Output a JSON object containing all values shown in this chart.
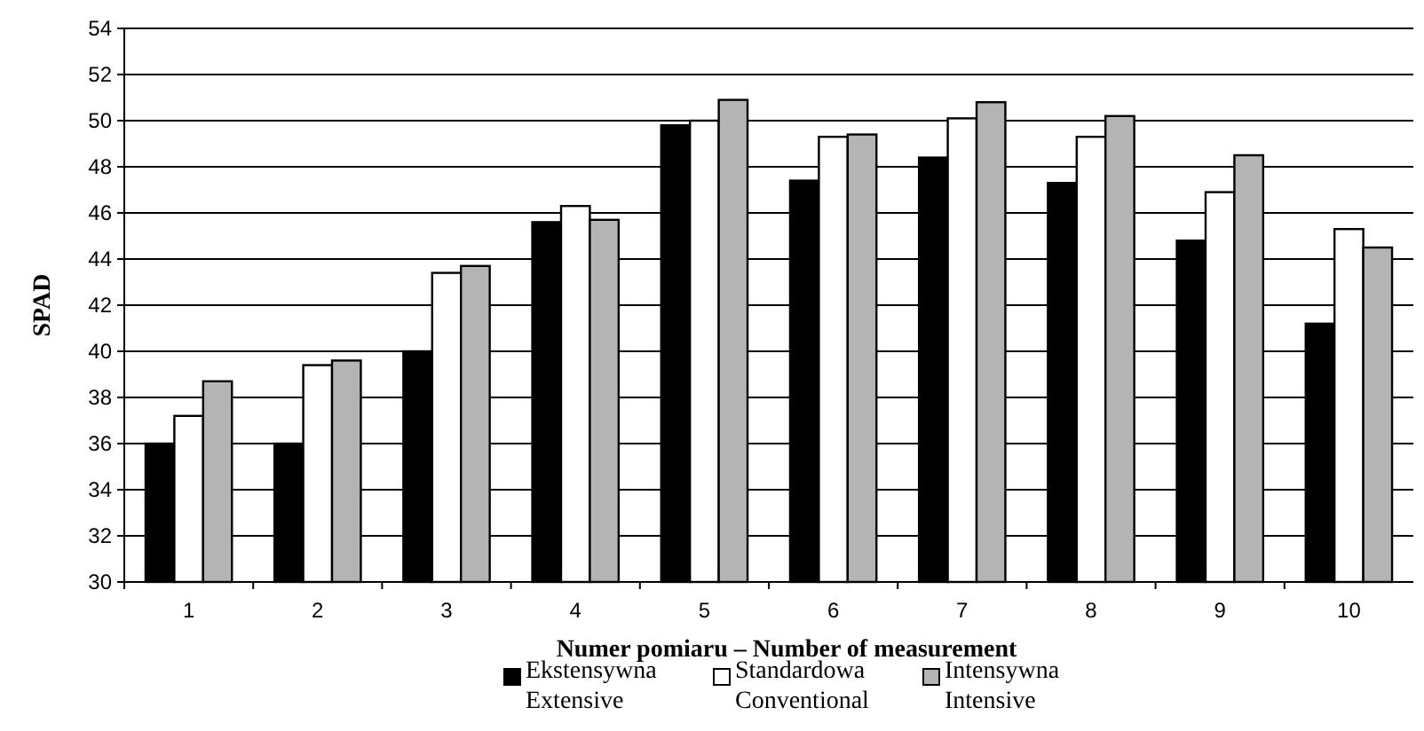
{
  "chart_data": {
    "type": "bar",
    "xlabel": "Numer pomiaru – Number of measurement",
    "ylabel": "SPAD",
    "categories": [
      "1",
      "2",
      "3",
      "4",
      "5",
      "6",
      "7",
      "8",
      "9",
      "10"
    ],
    "series": [
      {
        "name": "Ekstensywna\nExtensive",
        "color": "#000000",
        "values": [
          36.0,
          36.0,
          40.0,
          45.6,
          49.8,
          47.4,
          48.4,
          47.3,
          44.8,
          41.2
        ]
      },
      {
        "name": "Standardowa\nConventional",
        "color": "#ffffff",
        "values": [
          37.2,
          39.4,
          43.4,
          46.3,
          50.0,
          49.3,
          50.1,
          49.3,
          46.9,
          45.3
        ]
      },
      {
        "name": "Intensywna\nIntensive",
        "color": "#b4b4b4",
        "values": [
          38.7,
          39.6,
          43.7,
          45.7,
          50.9,
          49.4,
          50.8,
          50.2,
          48.5,
          44.5
        ]
      }
    ],
    "ylim": [
      30,
      54
    ],
    "yticks": [
      30,
      32,
      34,
      36,
      38,
      40,
      42,
      44,
      46,
      48,
      50,
      52,
      54
    ],
    "grid": "y",
    "legend": "bottom"
  }
}
